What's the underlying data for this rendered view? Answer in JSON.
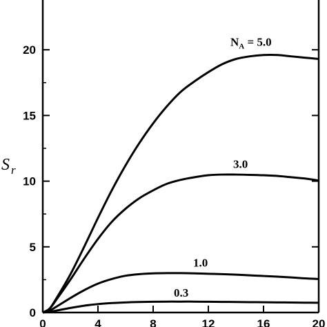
{
  "chart_data": {
    "type": "line",
    "title": "",
    "xlabel": "",
    "ylabel": "S",
    "ylabel_subscript": "r",
    "xlim": [
      0,
      20
    ],
    "ylim": [
      0,
      24
    ],
    "x_ticks": [
      0,
      4,
      8,
      12,
      16,
      20
    ],
    "y_ticks": [
      0,
      5,
      10,
      15,
      20
    ],
    "grid": false,
    "series": [
      {
        "name": "N_A = 5.0",
        "label_text": "N",
        "label_sub": "A",
        "label_rest": " = 5.0",
        "x": [
          0,
          0.5,
          1,
          2,
          3,
          4,
          5,
          6,
          7,
          8,
          9,
          10,
          11,
          12,
          13,
          14,
          15,
          16,
          17,
          18,
          19,
          20
        ],
        "y": [
          0,
          0.3,
          1.1,
          2.9,
          5.0,
          7.2,
          9.3,
          11.2,
          12.9,
          14.4,
          15.7,
          16.8,
          17.6,
          18.3,
          18.9,
          19.3,
          19.5,
          19.6,
          19.6,
          19.5,
          19.4,
          19.3
        ]
      },
      {
        "name": "3.0",
        "label_text": "3.0",
        "x": [
          0,
          0.5,
          1,
          2,
          3,
          4,
          5,
          6,
          7,
          8,
          9,
          10,
          11,
          12,
          13,
          14,
          15,
          16,
          17,
          18,
          19,
          20
        ],
        "y": [
          0,
          0.3,
          1.0,
          2.5,
          4.1,
          5.6,
          6.9,
          7.9,
          8.7,
          9.3,
          9.8,
          10.1,
          10.3,
          10.45,
          10.5,
          10.5,
          10.48,
          10.45,
          10.4,
          10.3,
          10.2,
          10.05
        ]
      },
      {
        "name": "1.0",
        "label_text": "1.0",
        "x": [
          0,
          0.5,
          1,
          2,
          3,
          4,
          5,
          6,
          7,
          8,
          9,
          10,
          11,
          12,
          13,
          14,
          15,
          16,
          17,
          18,
          19,
          20
        ],
        "y": [
          0,
          0.15,
          0.45,
          1.1,
          1.7,
          2.2,
          2.55,
          2.8,
          2.92,
          2.98,
          3.0,
          3.0,
          2.98,
          2.95,
          2.92,
          2.88,
          2.83,
          2.78,
          2.73,
          2.67,
          2.6,
          2.55
        ]
      },
      {
        "name": "0.3",
        "label_text": "0.3",
        "x": [
          0,
          0.5,
          1,
          2,
          3,
          4,
          5,
          6,
          7,
          8,
          9,
          10,
          11,
          12,
          13,
          14,
          15,
          16,
          17,
          18,
          19,
          20
        ],
        "y": [
          0,
          0.06,
          0.15,
          0.35,
          0.52,
          0.64,
          0.72,
          0.77,
          0.8,
          0.82,
          0.83,
          0.83,
          0.83,
          0.82,
          0.81,
          0.8,
          0.79,
          0.78,
          0.77,
          0.76,
          0.75,
          0.74
        ]
      }
    ]
  }
}
